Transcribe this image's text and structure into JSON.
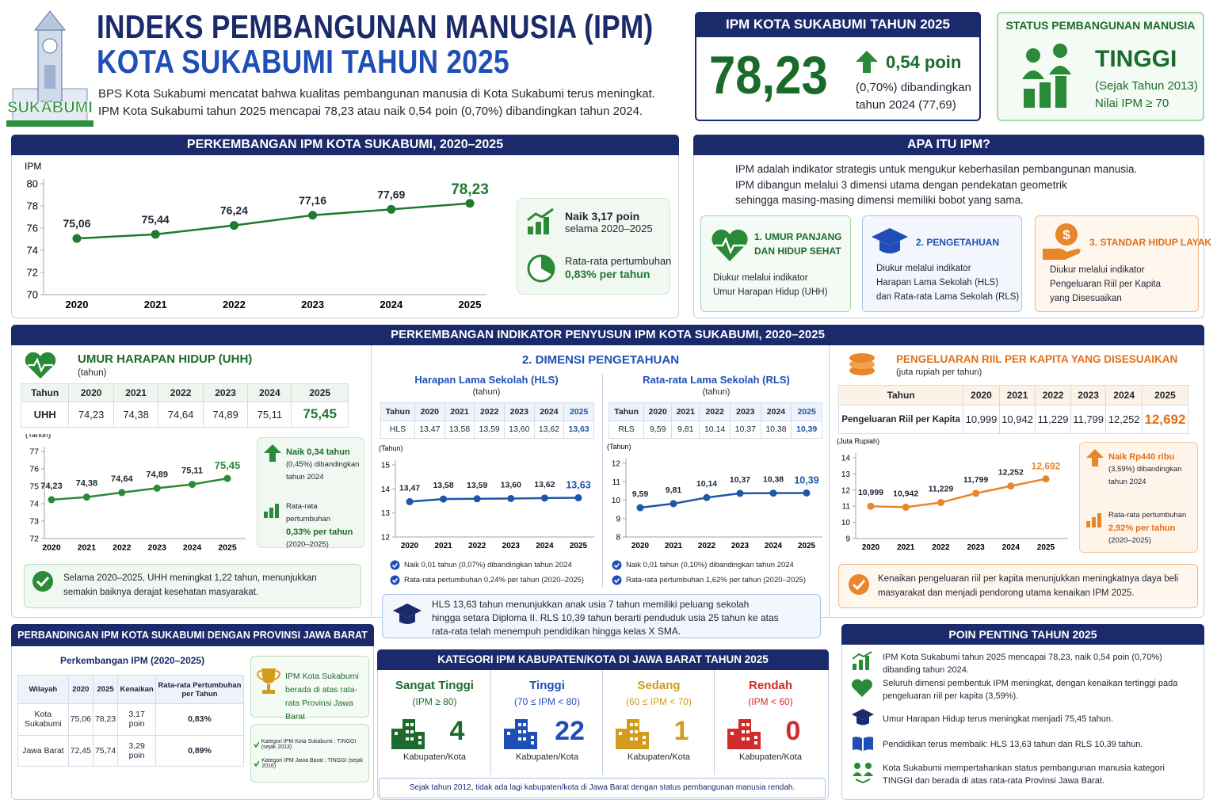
{
  "header": {
    "logo_text": "SUKABUMI",
    "title_line1": "INDEKS PEMBANGUNAN MANUSIA (IPM)",
    "title_line2": "KOTA SUKABUMI TAHUN 2025",
    "intro": [
      "BPS Kota Sukabumi mencatat bahwa kualitas pembangunan manusia di Kota Sukabumi terus meningkat.",
      "IPM Kota Sukabumi tahun 2025 mencapai 78,23 atau naik 0,54 poin (0,70%) dibandingkan tahun 2024."
    ]
  },
  "ipm_2025": {
    "title": "IPM KOTA SUKABUMI TAHUN 2025",
    "value": "78,23",
    "change": "0,54 poin",
    "note": [
      "(0,70%) dibandingkan",
      "tahun 2024 (77,69)"
    ]
  },
  "status": {
    "title": "STATUS PEMBANGUNAN MANUSIA",
    "level": "TINGGI",
    "note": [
      "(Sejak Tahun 2013)",
      "Nilai IPM ≥ 70"
    ]
  },
  "ipm_trend": {
    "title": "PERKEMBANGAN IPM KOTA SUKABUMI, 2020–2025",
    "highlights": [
      [
        "Naik 3,17 poin",
        "selama 2020–2025"
      ],
      [
        "Rata-rata pertumbuhan",
        "0,83% per tahun"
      ]
    ]
  },
  "about": {
    "title": "APA ITU IPM?",
    "text": [
      "IPM adalah indikator strategis untuk mengukur keberhasilan pembangunan manusia.",
      "IPM dibangun melalui 3 dimensi utama dengan pendekatan geometrik",
      "sehingga masing-masing dimensi memiliki bobot yang sama."
    ],
    "dimensions": [
      {
        "title": [
          "1. UMUR PANJANG",
          "DAN HIDUP SEHAT"
        ],
        "desc": [
          "Diukur melalui indikator",
          "Umur Harapan Hidup (UHH)"
        ]
      },
      {
        "title": [
          "2. PENGETAHUAN"
        ],
        "desc": [
          "Diukur melalui indikator",
          "Harapan Lama Sekolah (HLS)",
          "dan Rata-rata Lama Sekolah (RLS)"
        ]
      },
      {
        "title": [
          "3. STANDAR HIDUP LAYAK"
        ],
        "desc": [
          "Diukur melalui indikator",
          "Pengeluaran Riil per Kapita",
          "yang Disesuaikan"
        ]
      }
    ]
  },
  "indicators": {
    "title": "PERKEMBANGAN INDIKATOR PENYUSUN IPM KOTA SUKABUMI, 2020–2025",
    "uhh": {
      "title": "UMUR HARAPAN HIDUP (UHH)",
      "unit": "(tahun)",
      "table": {
        "header": [
          "Tahun",
          "2020",
          "2021",
          "2022",
          "2023",
          "2024",
          "2025"
        ],
        "rows": [
          [
            "UHH",
            "74,23",
            "74,38",
            "74,64",
            "74,89",
            "75,11",
            "75,45"
          ]
        ]
      },
      "highlights": [
        [
          "Naik 0,34 tahun",
          "(0,45%) dibandingkan",
          "tahun 2024"
        ],
        [
          "Rata-rata pertumbuhan",
          "0,33% per tahun",
          "(2020–2025)"
        ]
      ],
      "summary": "Selama 2020–2025, UHH meningkat 1,22 tahun, menunjukkan semakin baiknya derajat kesehatan masyarakat."
    },
    "knowledge": {
      "title": "2. DIMENSI PENGETAHUAN",
      "hls": {
        "title": "Harapan Lama Sekolah (HLS)",
        "unit": "(tahun)",
        "table": {
          "header": [
            "Tahun",
            "2020",
            "2021",
            "2022",
            "2023",
            "2024",
            "2025"
          ],
          "rows": [
            [
              "HLS",
              "13,47",
              "13,58",
              "13,59",
              "13,60",
              "13,62",
              "13,63"
            ]
          ]
        },
        "notes": [
          "Naik 0,01 tahun (0,07%) dibandingkan tahun 2024",
          "Rata-rata pertumbuhan 0,24% per tahun (2020–2025)"
        ]
      },
      "rls": {
        "title": "Rata-rata Lama Sekolah (RLS)",
        "unit": "(tahun)",
        "table": {
          "header": [
            "Tahun",
            "2020",
            "2021",
            "2022",
            "2023",
            "2024",
            "2025"
          ],
          "rows": [
            [
              "RLS",
              "9,59",
              "9,81",
              "10,14",
              "10,37",
              "10,38",
              "10,39"
            ]
          ]
        },
        "notes": [
          "Naik 0,01 tahun (0,10%) dibandingkan tahun 2024",
          "Rata-rata pertumbuhan 1,62% per tahun (2020–2025)"
        ]
      },
      "summary": [
        "HLS 13,63 tahun menunjukkan anak usia 7 tahun memiliki peluang sekolah",
        "hingga setara Diploma II. RLS 10,39 tahun berarti penduduk usia 25 tahun ke atas",
        "rata-rata telah menempuh pendidikan hingga kelas X SMA."
      ]
    },
    "expenditure": {
      "title": "PENGELUARAN RIIL PER KAPITA YANG DISESUAIKAN",
      "unit": "(juta rupiah per tahun)",
      "table": {
        "header": [
          "Tahun",
          "2020",
          "2021",
          "2022",
          "2023",
          "2024",
          "2025"
        ],
        "rows": [
          [
            "Pengeluaran Riil per Kapita",
            "10,999",
            "10,942",
            "11,229",
            "11,799",
            "12,252",
            "12,692"
          ]
        ]
      },
      "highlights": [
        [
          "Naik Rp440 ribu",
          "(3,59%) dibandingkan",
          "tahun 2024"
        ],
        [
          "Rata-rata pertumbuhan",
          "2,92% per tahun",
          "(2020–2025)"
        ]
      ],
      "summary": "Kenaikan pengeluaran riil per kapita menunjukkan meningkatnya daya beli masyarakat dan menjadi pendorong utama kenaikan IPM 2025."
    }
  },
  "comparison": {
    "title": "PERBANDINGAN IPM KOTA SUKABUMI DENGAN PROVINSI JAWA BARAT",
    "subtitle": "Perkembangan IPM (2020–2025)",
    "table": {
      "header": [
        "Wilayah",
        "2020",
        "2025",
        "Kenaikan",
        "Rata-rata Pertumbuhan per Tahun"
      ],
      "rows": [
        [
          "Kota Sukabumi",
          "75,06",
          "78,23",
          "3,17 poin",
          "0,83%"
        ],
        [
          "Jawa Barat",
          "72,45",
          "75,74",
          "3,29 poin",
          "0,89%"
        ]
      ]
    },
    "badge": "IPM Kota Sukabumi berada di atas rata-rata Provinsi Jawa Barat",
    "checks": [
      "Kategori IPM Kota Sukabumi : TINGGI (sejak 2013)",
      "Kategori IPM Jawa Barat : TINGGI (sejak 2016)"
    ]
  },
  "categories_jabar": {
    "title": "KATEGORI IPM KABUPATEN/KOTA DI JAWA BARAT TAHUN 2025",
    "items": [
      {
        "name": "Sangat Tinggi",
        "range": "(IPM ≥ 80)",
        "count": "4",
        "unit": "Kabupaten/Kota",
        "color": "#1c6b2c"
      },
      {
        "name": "Tinggi",
        "range": "(70 ≤ IPM < 80)",
        "count": "22",
        "unit": "Kabupaten/Kota",
        "color": "#1f4fb6"
      },
      {
        "name": "Sedang",
        "range": "(60 ≤ IPM < 70)",
        "count": "1",
        "unit": "Kabupaten/Kota",
        "color": "#d39b1c"
      },
      {
        "name": "Rendah",
        "range": "(IPM < 60)",
        "count": "0",
        "unit": "Kabupaten/Kota",
        "color": "#d22b2b"
      }
    ],
    "footer": "Sejak tahun 2012, tidak ada lagi kabupaten/kota di Jawa Barat dengan status pembangunan manusia rendah."
  },
  "key_points": {
    "title": "POIN PENTING TAHUN 2025",
    "items": [
      "IPM Kota Sukabumi tahun 2025 mencapai 78,23, naik 0,54 poin (0,70%) dibanding tahun 2024.",
      "Seluruh dimensi pembentuk IPM meningkat, dengan kenaikan tertinggi pada pengeluaran riil per kapita (3,59%).",
      "Umur Harapan Hidup terus meningkat menjadi 75,45 tahun.",
      "Pendidikan terus membaik: HLS 13,63 tahun dan RLS 10,39 tahun.",
      "Kota Sukabumi mempertahankan status pembangunan manusia kategori TINGGI dan berada di atas rata-rata Provinsi Jawa Barat."
    ]
  },
  "chart_data": [
    {
      "type": "line",
      "y_label": "IPM",
      "categories": [
        "2020",
        "2021",
        "2022",
        "2023",
        "2024",
        "2025"
      ],
      "values": [
        75.06,
        75.44,
        76.24,
        77.16,
        77.69,
        78.23
      ],
      "value_labels": [
        "75,06",
        "75,44",
        "76,24",
        "77,16",
        "77,69",
        "78,23"
      ],
      "ylim": [
        70,
        80
      ],
      "yticks": [
        70,
        72,
        74,
        76,
        78,
        80
      ],
      "color": "#1e7a2e"
    },
    {
      "type": "line",
      "y_label": "(Tahun)",
      "categories": [
        "2020",
        "2021",
        "2022",
        "2023",
        "2024",
        "2025"
      ],
      "values": [
        74.23,
        74.38,
        74.64,
        74.89,
        75.11,
        75.45
      ],
      "value_labels": [
        "74,23",
        "74,38",
        "74,64",
        "74,89",
        "75,11",
        "75,45"
      ],
      "ylim": [
        72,
        77
      ],
      "yticks": [
        72,
        73,
        74,
        75,
        76,
        77
      ],
      "color": "#2a8a37"
    },
    {
      "type": "line",
      "y_label": "(Tahun)",
      "categories": [
        "2020",
        "2021",
        "2022",
        "2023",
        "2024",
        "2025"
      ],
      "values": [
        13.47,
        13.58,
        13.59,
        13.6,
        13.62,
        13.63
      ],
      "value_labels": [
        "13,47",
        "13,58",
        "13,59",
        "13,60",
        "13,62",
        "13,63"
      ],
      "ylim": [
        12,
        15
      ],
      "yticks": [
        12,
        13,
        14,
        15
      ],
      "color": "#1f56a8"
    },
    {
      "type": "line",
      "y_label": "(Tahun)",
      "categories": [
        "2020",
        "2021",
        "2022",
        "2023",
        "2024",
        "2025"
      ],
      "values": [
        9.59,
        9.81,
        10.14,
        10.37,
        10.38,
        10.39
      ],
      "value_labels": [
        "9,59",
        "9,81",
        "10,14",
        "10,37",
        "10,38",
        "10,39"
      ],
      "ylim": [
        8,
        12
      ],
      "yticks": [
        8,
        9,
        10,
        11,
        12
      ],
      "color": "#1f56a8"
    },
    {
      "type": "line",
      "y_label": "(Juta Rupiah)",
      "categories": [
        "2020",
        "2021",
        "2022",
        "2023",
        "2024",
        "2025"
      ],
      "values": [
        10.999,
        10.942,
        11.229,
        11.799,
        12.252,
        12.692
      ],
      "value_labels": [
        "10,999",
        "10,942",
        "11,229",
        "11,799",
        "12,252",
        "12,692"
      ],
      "ylim": [
        9,
        14
      ],
      "yticks": [
        9,
        10,
        11,
        12,
        13,
        14
      ],
      "color": "#e8862a"
    }
  ]
}
